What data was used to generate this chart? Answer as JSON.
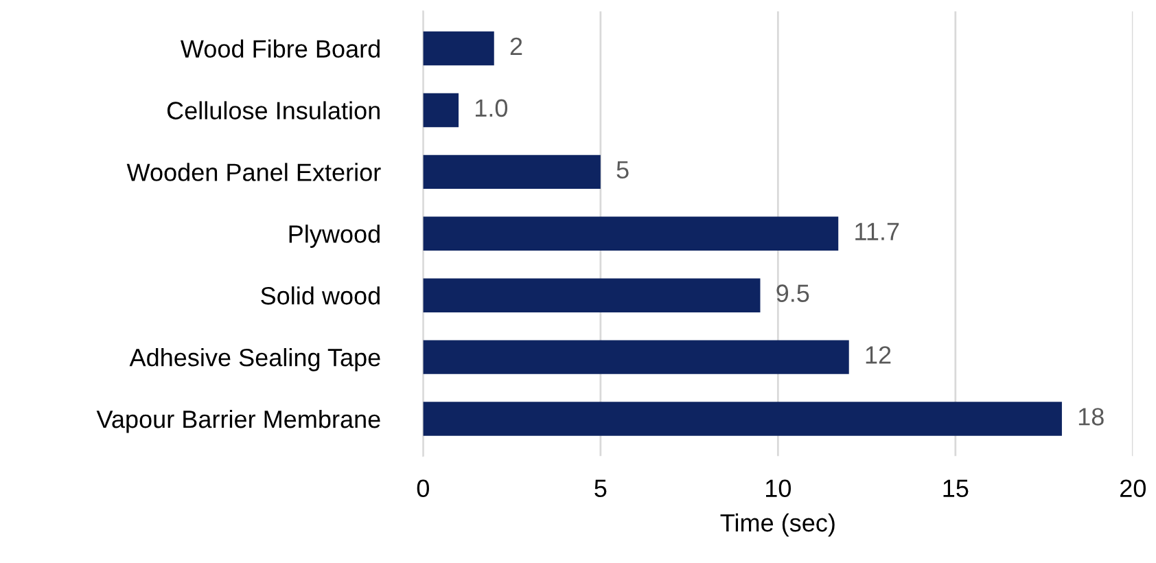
{
  "chart_data": {
    "type": "bar",
    "orientation": "horizontal",
    "xlabel": "Time (sec)",
    "categories": [
      "Wood Fibre Board",
      "Cellulose Insulation",
      "Wooden Panel Exterior",
      "Plywood",
      "Solid wood",
      "Adhesive Sealing Tape",
      "Vapour Barrier Membrane"
    ],
    "values": [
      2,
      1.0,
      5,
      11.7,
      9.5,
      12,
      18
    ],
    "value_labels": [
      "2",
      "1.0",
      "5",
      "11.7",
      "9.5",
      "12",
      "18"
    ],
    "color": "#0e2461",
    "xlim": [
      0,
      20
    ],
    "xticks": [
      0,
      5,
      10,
      15,
      20
    ],
    "grid": "x",
    "legend": false
  }
}
